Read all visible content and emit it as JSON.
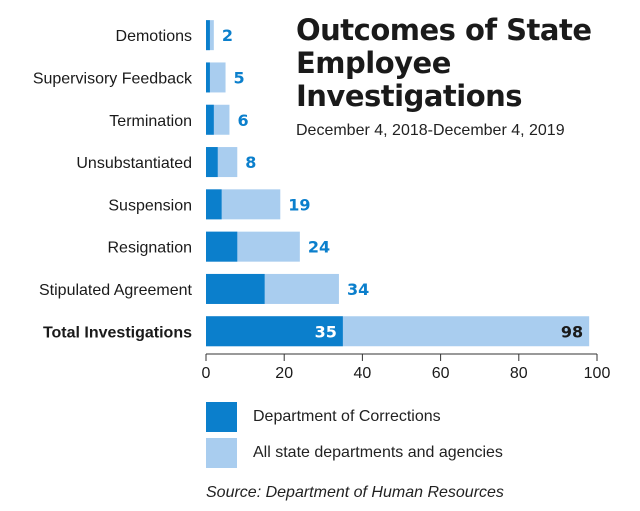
{
  "title": "Outcomes of State Employee Investigations",
  "subtitle": "December 4, 2018-December 4, 2019",
  "source": "Source: Department of Human Resources",
  "colors": {
    "corrections": "#0b7fcc",
    "all": "#a9cdef",
    "value_label": "#0b7fcc",
    "total_label": "#1a1a1a"
  },
  "legend": [
    {
      "label": "Department of Corrections",
      "color": "#0b7fcc"
    },
    {
      "label": "All state departments and agencies",
      "color": "#a9cdef"
    }
  ],
  "chart_data": {
    "type": "bar",
    "orientation": "horizontal",
    "stacking": "overlay",
    "categories": [
      "Demotions",
      "Supervisory Feedback",
      "Termination",
      "Unsubstantiated",
      "Suspension",
      "Resignation",
      "Stipulated Agreement",
      "Total Investigations"
    ],
    "series": [
      {
        "name": "Department of Corrections",
        "values": [
          1,
          1,
          2,
          3,
          4,
          8,
          15,
          35
        ]
      },
      {
        "name": "All state departments and agencies",
        "values": [
          2,
          5,
          6,
          8,
          19,
          24,
          34,
          98
        ]
      }
    ],
    "data_labels": [
      "2",
      "5",
      "6",
      "8",
      "19",
      "24",
      "34",
      "98"
    ],
    "total_corrections_label": "35",
    "xticks": [
      "0",
      "20",
      "40",
      "60",
      "80",
      "100"
    ],
    "xlim": [
      0,
      100
    ],
    "grid": false,
    "legend_position": "bottom"
  }
}
